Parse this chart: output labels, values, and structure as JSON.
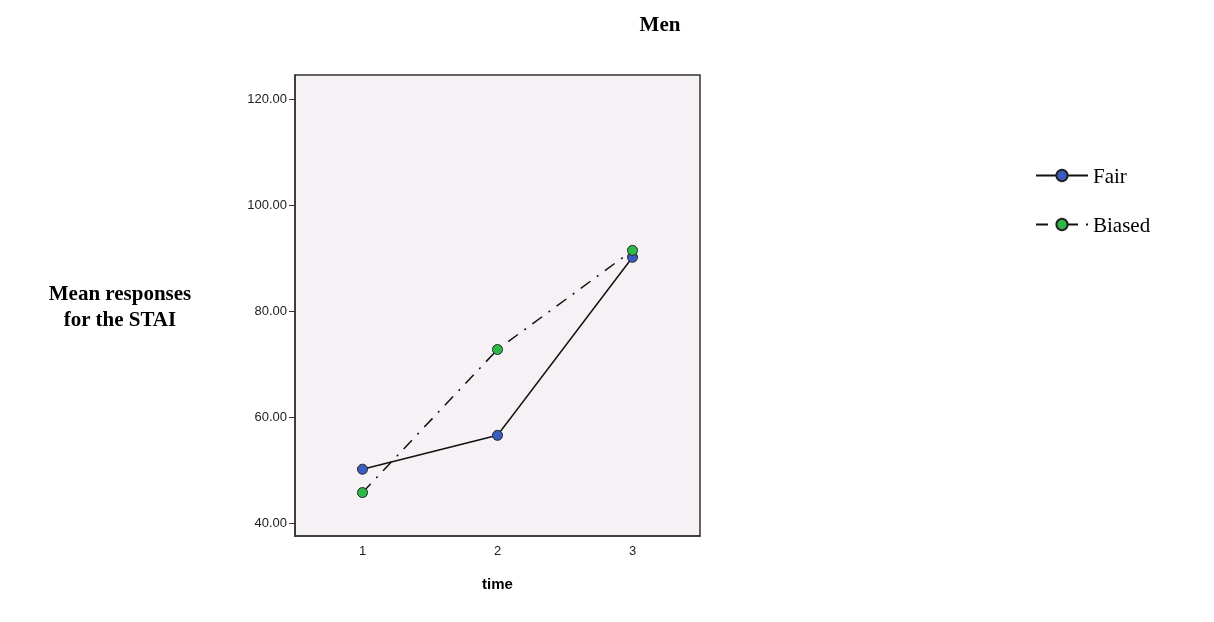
{
  "chart_data": {
    "type": "line",
    "title": "Men",
    "xlabel": "time",
    "ylabel": "Mean responses\nfor the STAI",
    "categories": [
      "1",
      "2",
      "3"
    ],
    "series": [
      {
        "name": "Fair",
        "color": "#3a5cc0",
        "values": [
          50.1,
          56.5,
          90.1
        ],
        "line_style": "solid"
      },
      {
        "name": "Biased",
        "color": "#2fb84a",
        "values": [
          45.7,
          72.7,
          91.4
        ],
        "line_style": "dashed"
      }
    ],
    "ylim": [
      37.5,
      124.5
    ],
    "yticks": [
      {
        "value": 40,
        "label": "40.00"
      },
      {
        "value": 60,
        "label": "60.00"
      },
      {
        "value": 80,
        "label": "80.00"
      },
      {
        "value": 100,
        "label": "100.00"
      },
      {
        "value": 120,
        "label": "120.00"
      }
    ],
    "grid": false,
    "legend": "right",
    "marker": "circle"
  }
}
